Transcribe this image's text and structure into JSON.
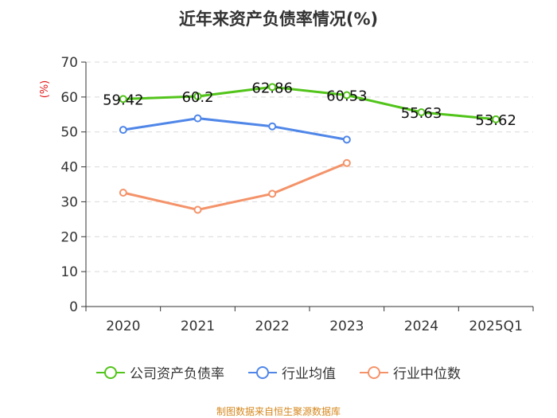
{
  "title": "近年来资产负债率情况(%)",
  "source": "制图数据来自恒生聚源数据库",
  "chart_data": {
    "type": "line",
    "title": "近年来资产负债率情况(%)",
    "ylabel": "(%)",
    "xlabel": "",
    "ylim": [
      0,
      70
    ],
    "yticks": [
      0,
      10,
      20,
      30,
      40,
      50,
      60,
      70
    ],
    "categories": [
      "2020",
      "2021",
      "2022",
      "2023",
      "2024",
      "2025Q1"
    ],
    "series": [
      {
        "name": "公司资产负债率",
        "color": "#52c41a",
        "values": [
          59.42,
          60.2,
          62.86,
          60.53,
          55.63,
          53.62
        ],
        "labels": [
          "59.42",
          "60.2",
          "62.86",
          "60.53",
          "55.63",
          "53.62"
        ]
      },
      {
        "name": "行业均值",
        "color": "#4f86e8",
        "values": [
          50.6,
          53.9,
          51.6,
          47.8,
          null,
          null
        ]
      },
      {
        "name": "行业中位数",
        "color": "#f4936a",
        "values": [
          32.6,
          27.7,
          32.3,
          41.1,
          null,
          null
        ]
      }
    ]
  }
}
